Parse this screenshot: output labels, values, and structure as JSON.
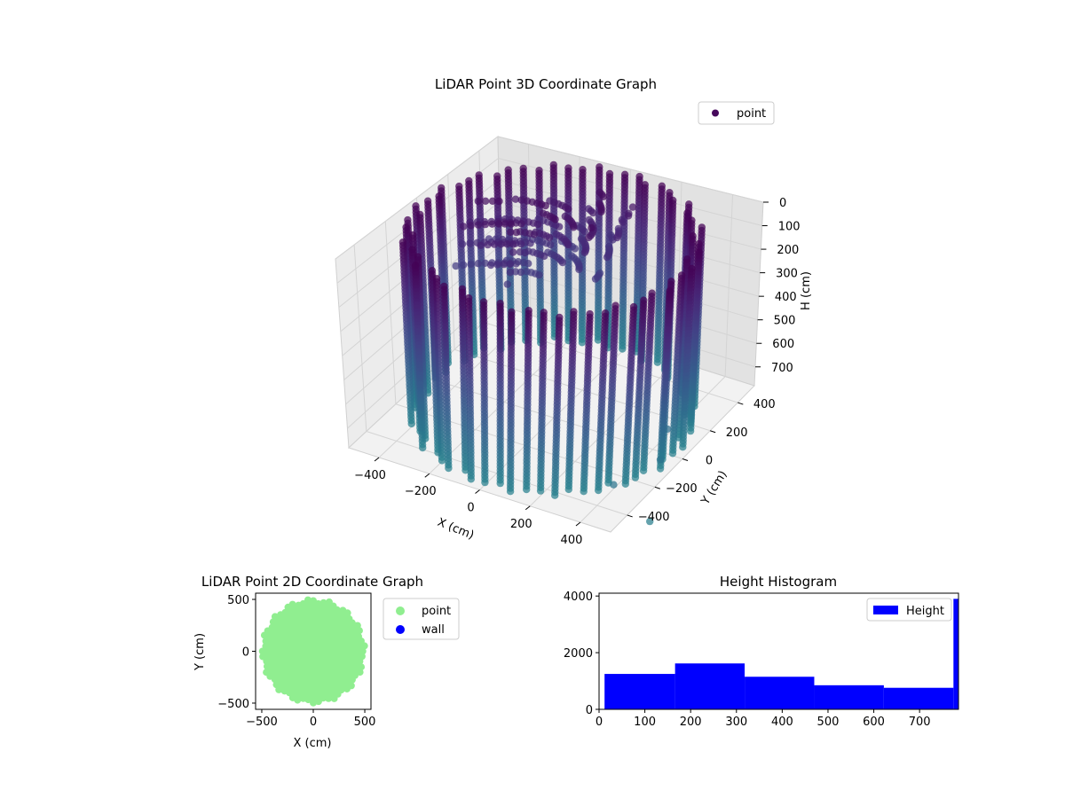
{
  "chart_data": [
    {
      "type": "scatter",
      "title": "LiDAR Point 3D Coordinate Graph",
      "projection": "3d",
      "xlabel": "X (cm)",
      "ylabel": "Y (cm)",
      "zlabel": "H (cm)",
      "xticks": [
        -400,
        -200,
        0,
        200,
        400
      ],
      "yticks": [
        -400,
        -200,
        0,
        200,
        400
      ],
      "zticks": [
        0,
        100,
        200,
        300,
        400,
        500,
        600,
        700
      ],
      "xlim": [
        -520,
        520
      ],
      "ylim": [
        -520,
        520
      ],
      "zlim": [
        780,
        0
      ],
      "z_axis_inverted": true,
      "legend": {
        "entries": [
          "point"
        ],
        "placement": "top-right"
      },
      "colormap": "viridis (by height)",
      "structure": {
        "shape": "cylindrical wall",
        "radius": 480,
        "height_range": [
          0,
          780
        ],
        "columns": 60
      },
      "outliers": [
        {
          "x": 430,
          "y": 150,
          "h": 620
        },
        {
          "x": 470,
          "y": -30,
          "h": 650
        },
        {
          "x": 520,
          "y": -170,
          "h": 680
        },
        {
          "x": 440,
          "y": -360,
          "h": 700
        },
        {
          "x": 620,
          "y": -420,
          "h": 760
        }
      ],
      "grid": true
    },
    {
      "type": "scatter",
      "title": "LiDAR Point 2D Coordinate Graph",
      "xlabel": "X (cm)",
      "ylabel": "Y (cm)",
      "xticks": [
        -500,
        0,
        500
      ],
      "yticks": [
        -500,
        0,
        500
      ],
      "xlim": [
        -560,
        560
      ],
      "ylim": [
        -560,
        560
      ],
      "series": [
        {
          "name": "point",
          "color": "#90ee90",
          "shape": "filled disc",
          "radius": 490
        },
        {
          "name": "wall",
          "color": "#0000ff",
          "points": []
        }
      ],
      "legend": {
        "placement": "outside-right"
      }
    },
    {
      "type": "bar",
      "title": "Height Histogram",
      "xticks": [
        0,
        100,
        200,
        300,
        400,
        500,
        600,
        700
      ],
      "yticks": [
        0,
        2000,
        4000
      ],
      "xlim": [
        0,
        785
      ],
      "ylim": [
        0,
        4100
      ],
      "bins": [
        {
          "from": 12,
          "to": 166,
          "count": 1250
        },
        {
          "from": 166,
          "to": 318,
          "count": 1620
        },
        {
          "from": 318,
          "to": 470,
          "count": 1150
        },
        {
          "from": 470,
          "to": 622,
          "count": 850
        },
        {
          "from": 622,
          "to": 774,
          "count": 760
        },
        {
          "from": 774,
          "to": 785,
          "count": 3900
        }
      ],
      "color": "#0000ff",
      "legend": {
        "entries": [
          "Height"
        ],
        "placement": "top-right"
      }
    }
  ]
}
